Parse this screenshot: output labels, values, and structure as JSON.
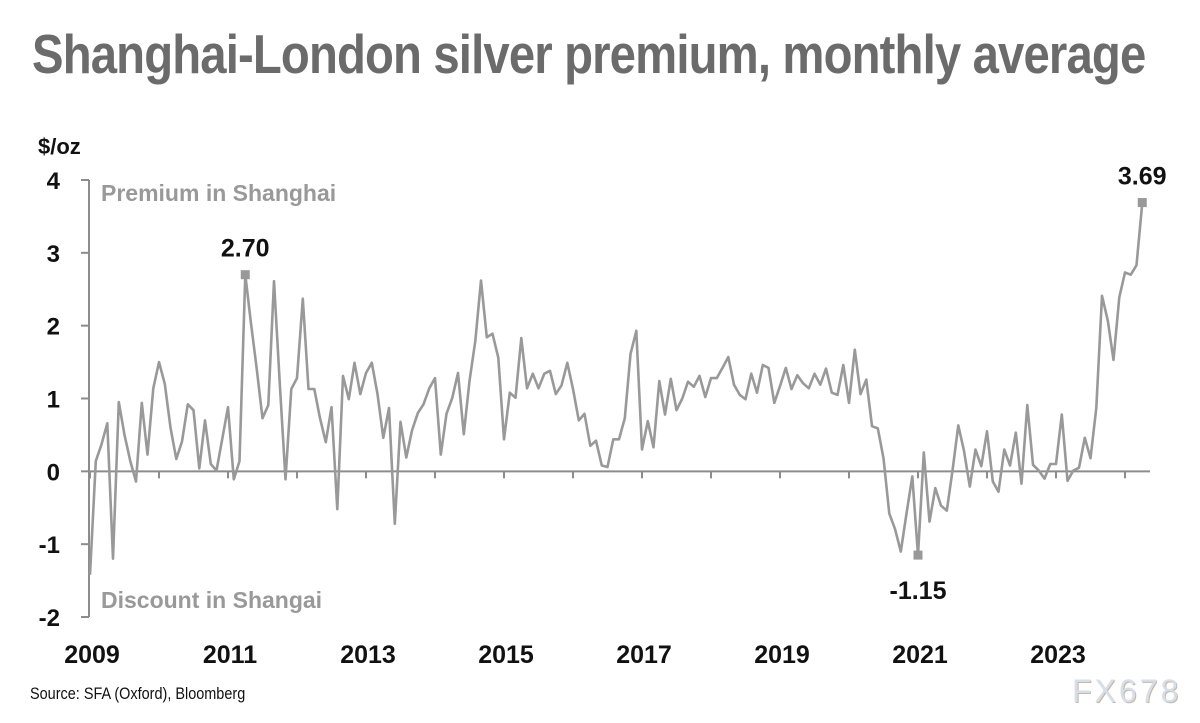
{
  "title": "Shanghai-London silver premium, monthly average",
  "source": "Source: SFA (Oxford), Bloomberg",
  "watermark": "FX678",
  "chart_data": {
    "type": "line",
    "title": "Shanghai-London silver premium, monthly average",
    "ylabel": "$/oz",
    "xlabel": "",
    "ylim": [
      -2,
      4
    ],
    "yticks": [
      4,
      3,
      2,
      1,
      0,
      -1,
      -2
    ],
    "xticks": [
      "2009",
      "2011",
      "2013",
      "2015",
      "2017",
      "2019",
      "2021",
      "2023"
    ],
    "x_start": "2009-01",
    "frequency": "monthly",
    "grid": false,
    "annotations": {
      "top_region": "Premium in Shanghai",
      "bottom_region": "Discount in Shangai",
      "labels": [
        {
          "text": "2.70",
          "month_index": 27,
          "value": 2.7
        },
        {
          "text": "-1.15",
          "month_index": 144,
          "value": -1.15
        },
        {
          "text": "3.69",
          "month_index": 183,
          "value": 3.69
        }
      ]
    },
    "series": [
      {
        "name": "Shanghai-London silver premium",
        "color": "#999999",
        "values": [
          -1.42,
          0.14,
          0.37,
          0.66,
          -1.2,
          0.95,
          0.5,
          0.14,
          -0.14,
          0.94,
          0.23,
          1.14,
          1.5,
          1.2,
          0.6,
          0.17,
          0.41,
          0.92,
          0.84,
          0.04,
          0.7,
          0.1,
          0.01,
          0.45,
          0.88,
          -0.11,
          0.14,
          2.7,
          2.03,
          1.4,
          0.73,
          0.91,
          2.61,
          1.2,
          -0.11,
          1.13,
          1.28,
          2.37,
          1.13,
          1.13,
          0.73,
          0.4,
          0.88,
          -0.52,
          1.31,
          0.99,
          1.49,
          1.06,
          1.35,
          1.49,
          1.06,
          0.46,
          0.87,
          -0.72,
          0.68,
          0.19,
          0.56,
          0.8,
          0.92,
          1.14,
          1.28,
          0.23,
          0.79,
          1.01,
          1.35,
          0.51,
          1.24,
          1.79,
          2.62,
          1.84,
          1.89,
          1.56,
          0.44,
          1.08,
          1.01,
          1.83,
          1.14,
          1.34,
          1.14,
          1.34,
          1.38,
          1.06,
          1.18,
          1.49,
          1.13,
          0.7,
          0.79,
          0.35,
          0.42,
          0.08,
          0.06,
          0.44,
          0.44,
          0.73,
          1.61,
          1.93,
          0.3,
          0.69,
          0.33,
          1.24,
          0.78,
          1.27,
          0.84,
          1.0,
          1.23,
          1.16,
          1.31,
          1.02,
          1.28,
          1.28,
          1.42,
          1.57,
          1.19,
          1.05,
          0.99,
          1.34,
          1.08,
          1.46,
          1.42,
          0.94,
          1.17,
          1.42,
          1.13,
          1.32,
          1.21,
          1.14,
          1.34,
          1.19,
          1.41,
          1.08,
          1.05,
          1.46,
          0.94,
          1.67,
          1.06,
          1.26,
          0.62,
          0.59,
          0.18,
          -0.58,
          -0.79,
          -1.1,
          -0.58,
          -0.07,
          -1.15,
          0.26,
          -0.69,
          -0.23,
          -0.47,
          -0.54,
          0.01,
          0.63,
          0.28,
          -0.21,
          0.3,
          0.07,
          0.55,
          -0.14,
          -0.28,
          0.3,
          0.08,
          0.53,
          -0.17,
          0.91,
          0.09,
          0.01,
          -0.1,
          0.1,
          0.1,
          0.78,
          -0.13,
          0.01,
          0.05,
          0.46,
          0.18,
          0.87,
          2.41,
          2.07,
          1.53,
          2.39,
          2.73,
          2.7,
          2.83,
          3.69
        ]
      }
    ]
  }
}
